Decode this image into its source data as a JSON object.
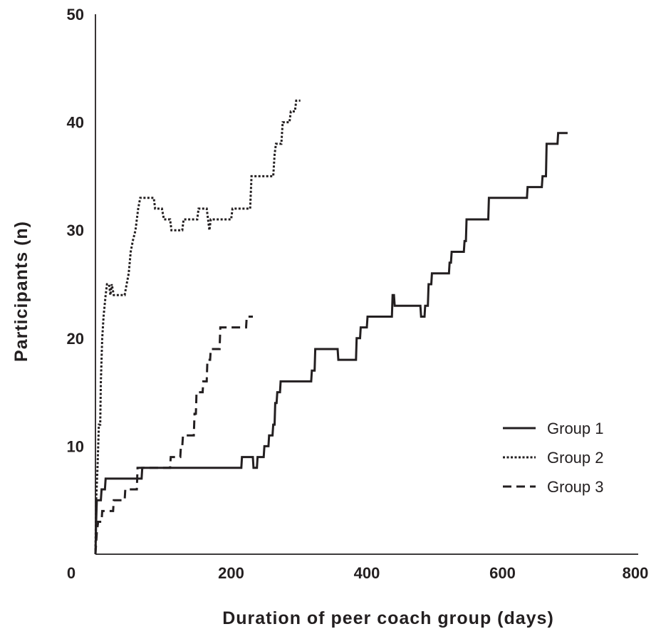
{
  "chart_data": {
    "type": "line",
    "line_shape": "step",
    "xlabel": "Duration of peer coach group (days)",
    "ylabel": "Participants (n)",
    "xlim": [
      0,
      800
    ],
    "ylim": [
      0,
      50
    ],
    "xticks": [
      0,
      200,
      400,
      600,
      800
    ],
    "yticks": [
      0,
      10,
      20,
      30,
      40,
      50
    ],
    "x_tick_labels": [
      "0",
      "200",
      "400",
      "600",
      "800"
    ],
    "y_tick_labels": [
      "",
      "10",
      "20",
      "30",
      "40",
      "50"
    ],
    "grid": false,
    "legend_position": "bottom-right",
    "series": [
      {
        "name": "Group 1",
        "style": "solid",
        "color": "#231f20",
        "points": [
          [
            0,
            0
          ],
          [
            1,
            3
          ],
          [
            2,
            5
          ],
          [
            8,
            5
          ],
          [
            9,
            6
          ],
          [
            14,
            6
          ],
          [
            15,
            7
          ],
          [
            68,
            7
          ],
          [
            69,
            8
          ],
          [
            215,
            8
          ],
          [
            216,
            9
          ],
          [
            232,
            9
          ],
          [
            233,
            8
          ],
          [
            238,
            8
          ],
          [
            239,
            9
          ],
          [
            248,
            9
          ],
          [
            249,
            10
          ],
          [
            255,
            10
          ],
          [
            256,
            11
          ],
          [
            261,
            11
          ],
          [
            262,
            12
          ],
          [
            264,
            12
          ],
          [
            265,
            14
          ],
          [
            267,
            14
          ],
          [
            268,
            15
          ],
          [
            272,
            15
          ],
          [
            273,
            16
          ],
          [
            318,
            16
          ],
          [
            319,
            17
          ],
          [
            323,
            17
          ],
          [
            324,
            19
          ],
          [
            357,
            19
          ],
          [
            358,
            18
          ],
          [
            384,
            18
          ],
          [
            385,
            20
          ],
          [
            390,
            20
          ],
          [
            391,
            21
          ],
          [
            400,
            21
          ],
          [
            401,
            22
          ],
          [
            437,
            22
          ],
          [
            438,
            24
          ],
          [
            440,
            24
          ],
          [
            441,
            23
          ],
          [
            479,
            23
          ],
          [
            480,
            22
          ],
          [
            485,
            22
          ],
          [
            486,
            23
          ],
          [
            490,
            23
          ],
          [
            491,
            25
          ],
          [
            495,
            25
          ],
          [
            496,
            26
          ],
          [
            521,
            26
          ],
          [
            522,
            27
          ],
          [
            524,
            27
          ],
          [
            525,
            28
          ],
          [
            543,
            28
          ],
          [
            544,
            29
          ],
          [
            546,
            29
          ],
          [
            547,
            31
          ],
          [
            579,
            31
          ],
          [
            580,
            33
          ],
          [
            636,
            33
          ],
          [
            637,
            34
          ],
          [
            658,
            34
          ],
          [
            659,
            35
          ],
          [
            664,
            35
          ],
          [
            665,
            38
          ],
          [
            681,
            38
          ],
          [
            682,
            39
          ],
          [
            696,
            39
          ]
        ]
      },
      {
        "name": "Group 2",
        "style": "dotted",
        "color": "#231f20",
        "points": [
          [
            0,
            0
          ],
          [
            1,
            5
          ],
          [
            3,
            8
          ],
          [
            5,
            12
          ],
          [
            7,
            12
          ],
          [
            8,
            16
          ],
          [
            10,
            20
          ],
          [
            12,
            22
          ],
          [
            15,
            24
          ],
          [
            17,
            25
          ],
          [
            20,
            25
          ],
          [
            22,
            24
          ],
          [
            24,
            25
          ],
          [
            27,
            24
          ],
          [
            43,
            24
          ],
          [
            46,
            25
          ],
          [
            49,
            26
          ],
          [
            52,
            28
          ],
          [
            55,
            29
          ],
          [
            59,
            30
          ],
          [
            63,
            32
          ],
          [
            66,
            33
          ],
          [
            86,
            33
          ],
          [
            88,
            32
          ],
          [
            98,
            32
          ],
          [
            101,
            31
          ],
          [
            110,
            31
          ],
          [
            112,
            30
          ],
          [
            128,
            30
          ],
          [
            130,
            31
          ],
          [
            150,
            31
          ],
          [
            152,
            32
          ],
          [
            164,
            32
          ],
          [
            166,
            31
          ],
          [
            168,
            30
          ],
          [
            170,
            31
          ],
          [
            200,
            31
          ],
          [
            202,
            32
          ],
          [
            228,
            32
          ],
          [
            230,
            35
          ],
          [
            262,
            35
          ],
          [
            264,
            37
          ],
          [
            266,
            38
          ],
          [
            274,
            38
          ],
          [
            276,
            40
          ],
          [
            286,
            40
          ],
          [
            288,
            41
          ],
          [
            294,
            41
          ],
          [
            296,
            42
          ],
          [
            302,
            42
          ]
        ]
      },
      {
        "name": "Group 3",
        "style": "dashed",
        "color": "#231f20",
        "points": [
          [
            0,
            0
          ],
          [
            2,
            2
          ],
          [
            4,
            3
          ],
          [
            9,
            3
          ],
          [
            10,
            4
          ],
          [
            26,
            4
          ],
          [
            27,
            5
          ],
          [
            43,
            5
          ],
          [
            44,
            6
          ],
          [
            61,
            6
          ],
          [
            62,
            8
          ],
          [
            110,
            8
          ],
          [
            111,
            9
          ],
          [
            125,
            9
          ],
          [
            126,
            10
          ],
          [
            128,
            10
          ],
          [
            129,
            11
          ],
          [
            145,
            11
          ],
          [
            146,
            13
          ],
          [
            148,
            13
          ],
          [
            149,
            15
          ],
          [
            158,
            15
          ],
          [
            159,
            16
          ],
          [
            164,
            16
          ],
          [
            165,
            18
          ],
          [
            169,
            18
          ],
          [
            170,
            19
          ],
          [
            183,
            19
          ],
          [
            184,
            21
          ],
          [
            222,
            21
          ],
          [
            223,
            22
          ],
          [
            232,
            22
          ]
        ]
      }
    ]
  }
}
